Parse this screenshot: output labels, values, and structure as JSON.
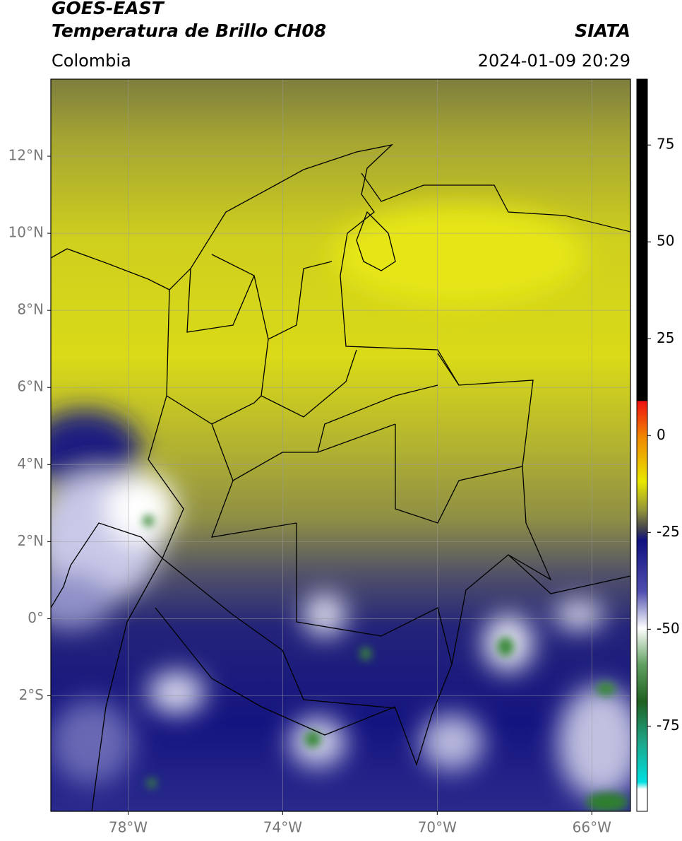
{
  "header": {
    "title": "GOES-EAST",
    "subtitle": "Temperatura de Brillo CH08",
    "source": "SIATA",
    "region": "Colombia",
    "datetime": "2024-01-09 20:29"
  },
  "map": {
    "lonlim": [
      -80,
      -65
    ],
    "latlim": [
      -5,
      14
    ],
    "lon_ticks": [
      {
        "value": -78,
        "label": "78°W"
      },
      {
        "value": -74,
        "label": "74°W"
      },
      {
        "value": -70,
        "label": "70°W"
      },
      {
        "value": -66,
        "label": "66°W"
      }
    ],
    "lat_ticks": [
      {
        "value": 12,
        "label": "12°N"
      },
      {
        "value": 10,
        "label": "10°N"
      },
      {
        "value": 8,
        "label": "8°N"
      },
      {
        "value": 6,
        "label": "6°N"
      },
      {
        "value": 4,
        "label": "4°N"
      },
      {
        "value": 2,
        "label": "2°N"
      },
      {
        "value": 0,
        "label": "0°"
      },
      {
        "value": -2,
        "label": "2°S"
      }
    ],
    "grid": true
  },
  "colorbar": {
    "range": [
      -97,
      92
    ],
    "ticks": [
      75,
      50,
      25,
      0,
      -25,
      -50,
      -75
    ]
  }
}
